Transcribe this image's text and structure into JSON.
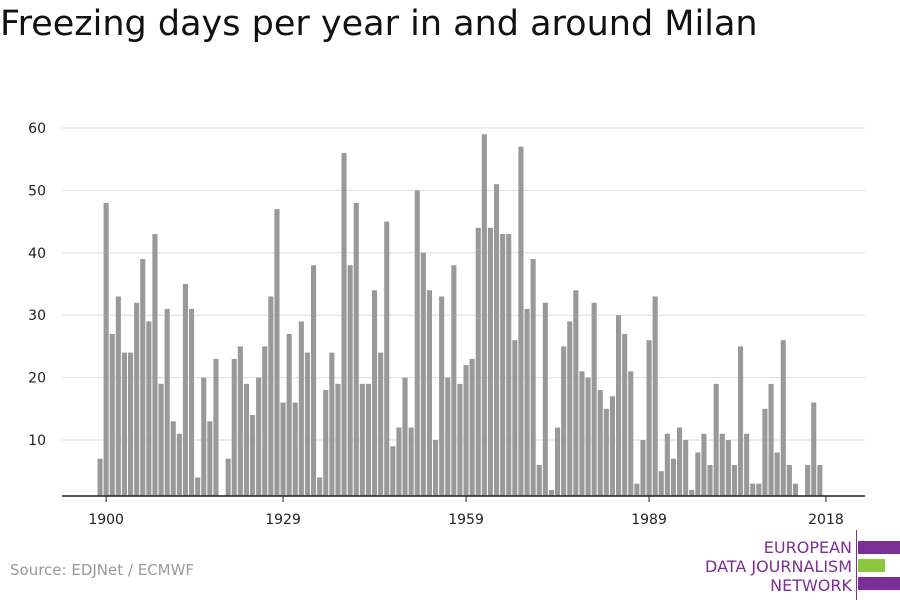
{
  "title": "Freezing days per year in and around Milan",
  "source": "Source: EDJNet / ECMWF",
  "logo": {
    "lines": [
      "EUROPEAN",
      "DATA JOURNALISM",
      "NETWORK"
    ],
    "colors": {
      "text": "#7a2e96",
      "purple": "#7a2e96",
      "green": "#8dc63f"
    }
  },
  "colors": {
    "bar": "#999999",
    "grid": "#dddddd",
    "axis": "#222222"
  },
  "chart_data": {
    "type": "bar",
    "title": "Freezing days per year in and around Milan",
    "xlabel": "",
    "ylabel": "",
    "x_start": 1899,
    "x_ticks": [
      1900,
      1929,
      1959,
      1989,
      2018
    ],
    "y_ticks": [
      10,
      20,
      30,
      40,
      50,
      60
    ],
    "ylim": [
      1,
      62
    ],
    "grid": "horizontal",
    "legend": "none",
    "values": [
      7,
      48,
      27,
      33,
      24,
      24,
      32,
      39,
      29,
      43,
      19,
      31,
      13,
      11,
      35,
      31,
      4,
      20,
      13,
      23,
      0,
      7,
      23,
      25,
      19,
      14,
      20,
      25,
      33,
      47,
      16,
      27,
      16,
      29,
      24,
      38,
      4,
      18,
      24,
      19,
      56,
      38,
      48,
      19,
      19,
      34,
      24,
      45,
      9,
      12,
      20,
      12,
      50,
      40,
      34,
      10,
      33,
      20,
      38,
      19,
      22,
      23,
      44,
      59,
      44,
      51,
      43,
      43,
      26,
      57,
      31,
      39,
      6,
      32,
      2,
      12,
      25,
      29,
      34,
      21,
      20,
      32,
      18,
      15,
      17,
      30,
      27,
      21,
      3,
      10,
      26,
      33,
      5,
      11,
      7,
      12,
      10,
      2,
      8,
      11,
      6,
      19,
      11,
      10,
      6,
      25,
      11,
      3,
      3,
      15,
      19,
      8,
      26,
      6,
      3,
      0,
      6,
      16,
      6
    ]
  }
}
